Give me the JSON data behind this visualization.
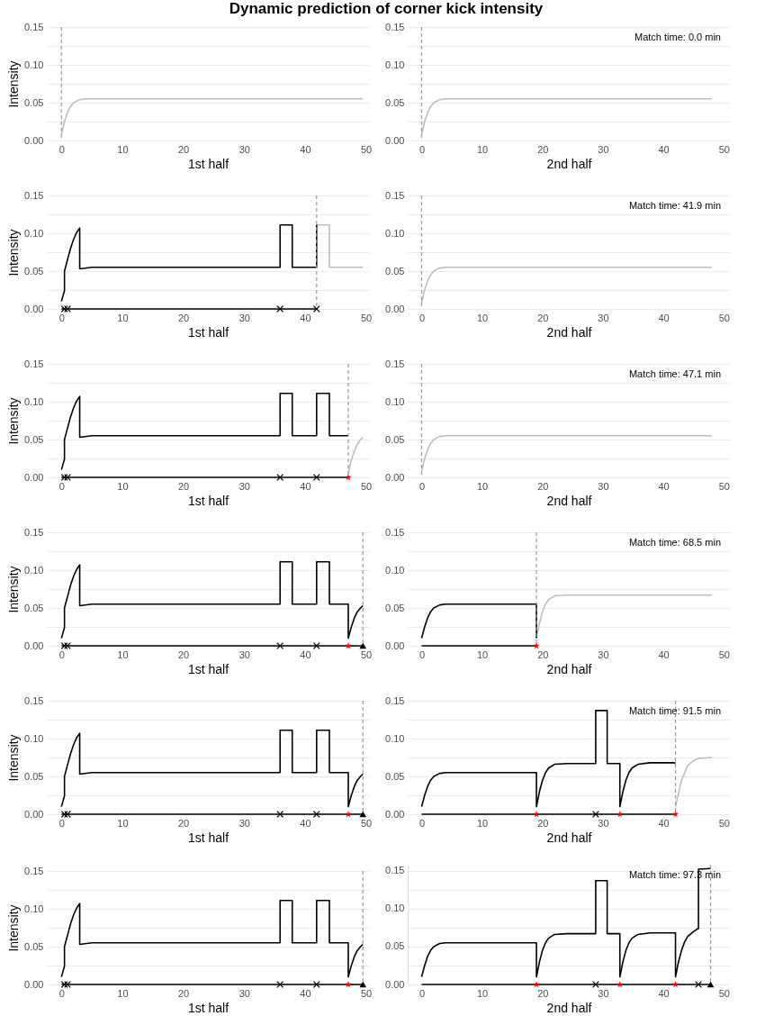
{
  "chart_data": [
    {
      "type": "line",
      "title": "Dynamic prediction of corner kick intensity",
      "xlabel": "1st half",
      "ylabel": "Intensity",
      "xlim": [
        -2.4,
        50.5
      ],
      "ylim": [
        0,
        0.15
      ],
      "xticks": [
        0,
        10,
        20,
        30,
        40,
        50
      ],
      "yticks": [
        {
          "value": 0,
          "label": "0.00"
        },
        {
          "value": 0.025,
          "label": null
        },
        {
          "value": 0.05,
          "label": "0.05"
        },
        {
          "value": 0.075,
          "label": null
        },
        {
          "value": 0.1,
          "label": "0.10"
        },
        {
          "value": 0.125,
          "label": null
        },
        {
          "value": 0.15,
          "label": "0.15"
        }
      ],
      "grid": "y",
      "ref_lines": [
        {
          "axis": "x",
          "value": 0,
          "color": "#999999",
          "line_style": "dashed"
        }
      ],
      "series": [
        {
          "type": "line",
          "color": "#bebebe",
          "x": [
            0,
            0.5,
            1,
            1.5,
            2,
            3,
            4,
            49.5
          ],
          "values": [
            0.008,
            0.025,
            0.037,
            0.045,
            0.05,
            0.054,
            0.055,
            0.055
          ]
        }
      ]
    },
    {
      "type": "line",
      "xlabel": "2nd half",
      "xlim": [
        -2.3,
        51
      ],
      "ylim": [
        0,
        0.15
      ],
      "xticks": [
        0,
        10,
        20,
        30,
        40,
        50
      ],
      "yticks": [
        {
          "value": 0,
          "label": "0.00"
        },
        {
          "value": 0.025,
          "label": null
        },
        {
          "value": 0.05,
          "label": "0.05"
        },
        {
          "value": 0.075,
          "label": null
        },
        {
          "value": 0.1,
          "label": "0.10"
        },
        {
          "value": 0.125,
          "label": null
        },
        {
          "value": 0.15,
          "label": "0.15"
        }
      ],
      "grid": "y",
      "annotations": [
        "Match time: 0.0 min"
      ],
      "ref_lines": [
        {
          "axis": "x",
          "value": 0,
          "color": "#999999",
          "line_style": "dashed"
        }
      ],
      "series": [
        {
          "type": "line",
          "color": "#bebebe",
          "x": [
            0,
            0.5,
            1,
            1.5,
            2,
            3,
            4,
            48
          ],
          "values": [
            0.008,
            0.025,
            0.037,
            0.045,
            0.05,
            0.054,
            0.055,
            0.055
          ]
        }
      ]
    },
    {
      "type": "line",
      "xlabel": "1st half",
      "ylabel": "Intensity",
      "xlim": [
        -2.4,
        50.5
      ],
      "ylim": [
        0,
        0.15
      ],
      "xticks": [
        0,
        10,
        20,
        30,
        40,
        50
      ],
      "yticks": [
        {
          "value": 0,
          "label": "0.00"
        },
        {
          "value": 0.025,
          "label": null
        },
        {
          "value": 0.05,
          "label": "0.05"
        },
        {
          "value": 0.075,
          "label": null
        },
        {
          "value": 0.1,
          "label": "0.10"
        },
        {
          "value": 0.125,
          "label": null
        },
        {
          "value": 0.15,
          "label": "0.15"
        }
      ],
      "grid": "y",
      "ref_lines": [
        {
          "axis": "x",
          "value": 41.9,
          "color": "#999999",
          "line_style": "dashed"
        }
      ],
      "series": [
        {
          "type": "line",
          "color": "#bebebe",
          "x": [
            41.9,
            44,
            44,
            49.5
          ],
          "values": [
            0.111,
            0.111,
            0.055,
            0.055
          ]
        },
        {
          "type": "line",
          "color": "#000000",
          "x": [
            0,
            0.5,
            0.5,
            1,
            1.5,
            2,
            2.5,
            3,
            3,
            5,
            35.9,
            35.9,
            37.9,
            37.9,
            41.9,
            41.9
          ],
          "values": [
            0.01,
            0.024,
            0.05,
            0.065,
            0.08,
            0.092,
            0.101,
            0.107,
            0.053,
            0.055,
            0.055,
            0.111,
            0.111,
            0.055,
            0.055,
            0.111
          ]
        },
        {
          "type": "line",
          "color": "#000000",
          "x": [
            0,
            41.9
          ],
          "values": [
            0,
            0
          ]
        },
        {
          "type": "scatter",
          "marker": "cross",
          "color": "#000000",
          "x": [
            0.5,
            1,
            35.9,
            41.9
          ],
          "values": [
            0,
            0,
            0,
            0
          ]
        }
      ]
    },
    {
      "type": "line",
      "xlabel": "2nd half",
      "xlim": [
        -2.3,
        51
      ],
      "ylim": [
        0,
        0.15
      ],
      "xticks": [
        0,
        10,
        20,
        30,
        40,
        50
      ],
      "yticks": [
        {
          "value": 0,
          "label": "0.00"
        },
        {
          "value": 0.025,
          "label": null
        },
        {
          "value": 0.05,
          "label": "0.05"
        },
        {
          "value": 0.075,
          "label": null
        },
        {
          "value": 0.1,
          "label": "0.10"
        },
        {
          "value": 0.125,
          "label": null
        },
        {
          "value": 0.15,
          "label": "0.15"
        }
      ],
      "grid": "y",
      "annotations": [
        "Match time: 41.9 min"
      ],
      "ref_lines": [
        {
          "axis": "x",
          "value": 0,
          "color": "#999999",
          "line_style": "dashed"
        }
      ],
      "series": [
        {
          "type": "line",
          "color": "#bebebe",
          "x": [
            0,
            0.5,
            1,
            1.5,
            2,
            3,
            4,
            48
          ],
          "values": [
            0.008,
            0.025,
            0.037,
            0.045,
            0.05,
            0.054,
            0.055,
            0.055
          ]
        }
      ]
    },
    {
      "type": "line",
      "xlabel": "1st half",
      "ylabel": "Intensity",
      "xlim": [
        -2.4,
        50.5
      ],
      "ylim": [
        0,
        0.15
      ],
      "xticks": [
        0,
        10,
        20,
        30,
        40,
        50
      ],
      "yticks": [
        {
          "value": 0,
          "label": "0.00"
        },
        {
          "value": 0.025,
          "label": null
        },
        {
          "value": 0.05,
          "label": "0.05"
        },
        {
          "value": 0.075,
          "label": null
        },
        {
          "value": 0.1,
          "label": "0.10"
        },
        {
          "value": 0.125,
          "label": null
        },
        {
          "value": 0.15,
          "label": "0.15"
        }
      ],
      "grid": "y",
      "ref_lines": [
        {
          "axis": "x",
          "value": 47.1,
          "color": "#999999",
          "line_style": "dashed"
        }
      ],
      "series": [
        {
          "type": "line",
          "color": "#bebebe",
          "x": [
            47.1,
            47.6,
            48.1,
            48.6,
            49.1,
            49.5
          ],
          "values": [
            0.006,
            0.023,
            0.035,
            0.044,
            0.05,
            0.053
          ]
        },
        {
          "type": "line",
          "color": "#000000",
          "x": [
            0,
            0.5,
            0.5,
            1,
            1.5,
            2,
            2.5,
            3,
            3,
            5,
            35.9,
            35.9,
            37.9,
            37.9,
            41.9,
            41.9,
            44,
            44,
            47.1
          ],
          "values": [
            0.01,
            0.024,
            0.05,
            0.065,
            0.08,
            0.092,
            0.101,
            0.107,
            0.053,
            0.055,
            0.055,
            0.111,
            0.111,
            0.055,
            0.055,
            0.111,
            0.111,
            0.055,
            0.055
          ]
        },
        {
          "type": "line",
          "color": "#000000",
          "x": [
            0,
            47.1
          ],
          "values": [
            0,
            0
          ]
        },
        {
          "type": "scatter",
          "marker": "cross",
          "color": "#000000",
          "x": [
            0.5,
            1,
            35.9,
            41.9
          ],
          "values": [
            0,
            0,
            0,
            0
          ]
        },
        {
          "type": "scatter",
          "marker": "star",
          "color": "#ff0000",
          "x": [
            47.1
          ],
          "values": [
            0
          ]
        }
      ]
    },
    {
      "type": "line",
      "xlabel": "2nd half",
      "xlim": [
        -2.3,
        51
      ],
      "ylim": [
        0,
        0.15
      ],
      "xticks": [
        0,
        10,
        20,
        30,
        40,
        50
      ],
      "yticks": [
        {
          "value": 0,
          "label": "0.00"
        },
        {
          "value": 0.025,
          "label": null
        },
        {
          "value": 0.05,
          "label": "0.05"
        },
        {
          "value": 0.075,
          "label": null
        },
        {
          "value": 0.1,
          "label": "0.10"
        },
        {
          "value": 0.125,
          "label": null
        },
        {
          "value": 0.15,
          "label": "0.15"
        }
      ],
      "grid": "y",
      "annotations": [
        "Match time: 47.1 min"
      ],
      "ref_lines": [
        {
          "axis": "x",
          "value": 0,
          "color": "#999999",
          "line_style": "dashed"
        }
      ],
      "series": [
        {
          "type": "line",
          "color": "#bebebe",
          "x": [
            0,
            0.5,
            1,
            1.5,
            2,
            3,
            4,
            48
          ],
          "values": [
            0.008,
            0.025,
            0.037,
            0.045,
            0.05,
            0.054,
            0.055,
            0.055
          ]
        }
      ]
    },
    {
      "type": "line",
      "xlabel": "1st half",
      "ylabel": "Intensity",
      "xlim": [
        -2.4,
        50.5
      ],
      "ylim": [
        0,
        0.15
      ],
      "xticks": [
        0,
        10,
        20,
        30,
        40,
        50
      ],
      "yticks": [
        {
          "value": 0,
          "label": "0.00"
        },
        {
          "value": 0.025,
          "label": null
        },
        {
          "value": 0.05,
          "label": "0.05"
        },
        {
          "value": 0.075,
          "label": null
        },
        {
          "value": 0.1,
          "label": "0.10"
        },
        {
          "value": 0.125,
          "label": null
        },
        {
          "value": 0.15,
          "label": "0.15"
        }
      ],
      "grid": "y",
      "ref_lines": [
        {
          "axis": "x",
          "value": 49.5,
          "color": "#999999",
          "line_style": "dashed"
        }
      ],
      "series": [
        {
          "type": "line",
          "color": "#000000",
          "x": [
            0,
            0.5,
            0.5,
            1,
            1.5,
            2,
            2.5,
            3,
            3,
            5,
            35.9,
            35.9,
            37.9,
            37.9,
            41.9,
            41.9,
            44,
            44,
            47.1,
            47.1,
            47.6,
            48.1,
            48.6,
            49.1,
            49.5
          ],
          "values": [
            0.01,
            0.024,
            0.05,
            0.065,
            0.08,
            0.092,
            0.101,
            0.107,
            0.053,
            0.055,
            0.055,
            0.111,
            0.111,
            0.055,
            0.055,
            0.111,
            0.111,
            0.055,
            0.055,
            0.01,
            0.025,
            0.037,
            0.045,
            0.05,
            0.053
          ]
        },
        {
          "type": "line",
          "color": "#000000",
          "x": [
            0,
            49.5
          ],
          "values": [
            0,
            0
          ]
        },
        {
          "type": "scatter",
          "marker": "cross",
          "color": "#000000",
          "x": [
            0.5,
            1,
            35.9,
            41.9
          ],
          "values": [
            0,
            0,
            0,
            0
          ]
        },
        {
          "type": "scatter",
          "marker": "star",
          "color": "#ff0000",
          "x": [
            47.1
          ],
          "values": [
            0
          ]
        },
        {
          "type": "scatter",
          "marker": "triangle",
          "color": "#000000",
          "x": [
            49.5
          ],
          "values": [
            0
          ]
        }
      ]
    },
    {
      "type": "line",
      "xlabel": "2nd half",
      "xlim": [
        -2.3,
        51
      ],
      "ylim": [
        0,
        0.15
      ],
      "xticks": [
        0,
        10,
        20,
        30,
        40,
        50
      ],
      "yticks": [
        {
          "value": 0,
          "label": "0.00"
        },
        {
          "value": 0.025,
          "label": null
        },
        {
          "value": 0.05,
          "label": "0.05"
        },
        {
          "value": 0.075,
          "label": null
        },
        {
          "value": 0.1,
          "label": "0.10"
        },
        {
          "value": 0.125,
          "label": null
        },
        {
          "value": 0.15,
          "label": "0.15"
        }
      ],
      "grid": "y",
      "annotations": [
        "Match time: 68.5 min"
      ],
      "ref_lines": [
        {
          "axis": "x",
          "value": 19,
          "color": "#999999",
          "line_style": "dashed"
        }
      ],
      "series": [
        {
          "type": "line",
          "color": "#bebebe",
          "x": [
            19,
            19.5,
            20,
            20.5,
            21,
            22,
            24,
            48
          ],
          "values": [
            0.01,
            0.03,
            0.045,
            0.055,
            0.061,
            0.066,
            0.067,
            0.067
          ]
        },
        {
          "type": "line",
          "color": "#000000",
          "x": [
            0,
            0.5,
            1,
            1.5,
            2,
            3,
            4,
            19,
            19
          ],
          "values": [
            0.01,
            0.025,
            0.037,
            0.045,
            0.05,
            0.054,
            0.055,
            0.055,
            0.01
          ]
        },
        {
          "type": "line",
          "color": "#000000",
          "x": [
            0,
            19
          ],
          "values": [
            0,
            0
          ]
        },
        {
          "type": "scatter",
          "marker": "star",
          "color": "#ff0000",
          "x": [
            19
          ],
          "values": [
            0
          ]
        }
      ]
    },
    {
      "type": "line",
      "xlabel": "1st half",
      "ylabel": "Intensity",
      "xlim": [
        -2.4,
        50.5
      ],
      "ylim": [
        0,
        0.15
      ],
      "xticks": [
        0,
        10,
        20,
        30,
        40,
        50
      ],
      "yticks": [
        {
          "value": 0,
          "label": "0.00"
        },
        {
          "value": 0.025,
          "label": null
        },
        {
          "value": 0.05,
          "label": "0.05"
        },
        {
          "value": 0.075,
          "label": null
        },
        {
          "value": 0.1,
          "label": "0.10"
        },
        {
          "value": 0.125,
          "label": null
        },
        {
          "value": 0.15,
          "label": "0.15"
        }
      ],
      "grid": "y",
      "ref_lines": [
        {
          "axis": "x",
          "value": 49.5,
          "color": "#999999",
          "line_style": "dashed"
        }
      ],
      "series": [
        {
          "type": "line",
          "color": "#000000",
          "x": [
            0,
            0.5,
            0.5,
            1,
            1.5,
            2,
            2.5,
            3,
            3,
            5,
            35.9,
            35.9,
            37.9,
            37.9,
            41.9,
            41.9,
            44,
            44,
            47.1,
            47.1,
            47.6,
            48.1,
            48.6,
            49.1,
            49.5
          ],
          "values": [
            0.01,
            0.024,
            0.05,
            0.065,
            0.08,
            0.092,
            0.101,
            0.107,
            0.053,
            0.055,
            0.055,
            0.111,
            0.111,
            0.055,
            0.055,
            0.111,
            0.111,
            0.055,
            0.055,
            0.01,
            0.025,
            0.037,
            0.045,
            0.05,
            0.053
          ]
        },
        {
          "type": "line",
          "color": "#000000",
          "x": [
            0,
            49.5
          ],
          "values": [
            0,
            0
          ]
        },
        {
          "type": "scatter",
          "marker": "cross",
          "color": "#000000",
          "x": [
            0.5,
            1,
            35.9,
            41.9
          ],
          "values": [
            0,
            0,
            0,
            0
          ]
        },
        {
          "type": "scatter",
          "marker": "star",
          "color": "#ff0000",
          "x": [
            47.1
          ],
          "values": [
            0
          ]
        },
        {
          "type": "scatter",
          "marker": "triangle",
          "color": "#000000",
          "x": [
            49.5
          ],
          "values": [
            0
          ]
        }
      ]
    },
    {
      "type": "line",
      "xlabel": "2nd half",
      "xlim": [
        -2.3,
        51
      ],
      "ylim": [
        0,
        0.15
      ],
      "xticks": [
        0,
        10,
        20,
        30,
        40,
        50
      ],
      "yticks": [
        {
          "value": 0,
          "label": "0.00"
        },
        {
          "value": 0.025,
          "label": null
        },
        {
          "value": 0.05,
          "label": "0.05"
        },
        {
          "value": 0.075,
          "label": null
        },
        {
          "value": 0.1,
          "label": "0.10"
        },
        {
          "value": 0.125,
          "label": null
        },
        {
          "value": 0.15,
          "label": "0.15"
        }
      ],
      "grid": "y",
      "annotations": [
        "Match time: 91.5 min"
      ],
      "ref_lines": [
        {
          "axis": "x",
          "value": 42,
          "color": "#999999",
          "line_style": "dashed"
        }
      ],
      "series": [
        {
          "type": "line",
          "color": "#bebebe",
          "x": [
            42,
            43,
            44,
            45,
            46,
            48
          ],
          "values": [
            0.01,
            0.045,
            0.064,
            0.071,
            0.074,
            0.075
          ]
        },
        {
          "type": "line",
          "color": "#000000",
          "x": [
            0,
            0.5,
            1,
            1.5,
            2,
            3,
            4,
            19,
            19,
            19.5,
            20,
            20.5,
            21,
            22,
            24,
            28.8,
            28.8,
            30.7,
            30.7,
            32.8,
            32.8,
            33.3,
            33.8,
            34.3,
            34.8,
            35.8,
            37.8,
            42
          ],
          "values": [
            0.01,
            0.025,
            0.037,
            0.045,
            0.05,
            0.054,
            0.055,
            0.055,
            0.01,
            0.03,
            0.045,
            0.055,
            0.061,
            0.066,
            0.067,
            0.067,
            0.137,
            0.137,
            0.067,
            0.067,
            0.01,
            0.03,
            0.045,
            0.055,
            0.061,
            0.066,
            0.068,
            0.068
          ]
        },
        {
          "type": "line",
          "color": "#000000",
          "x": [
            0,
            42
          ],
          "values": [
            0,
            0
          ]
        },
        {
          "type": "scatter",
          "marker": "cross",
          "color": "#000000",
          "x": [
            28.8
          ],
          "values": [
            0
          ]
        },
        {
          "type": "scatter",
          "marker": "star",
          "color": "#ff0000",
          "x": [
            19,
            32.8,
            42
          ],
          "values": [
            0,
            0,
            0
          ]
        }
      ]
    },
    {
      "type": "line",
      "xlabel": "1st half",
      "ylabel": "Intensity",
      "xlim": [
        -2.4,
        50.5
      ],
      "ylim": [
        0,
        0.15
      ],
      "xticks": [
        0,
        10,
        20,
        30,
        40,
        50
      ],
      "yticks": [
        {
          "value": 0,
          "label": "0.00"
        },
        {
          "value": 0.025,
          "label": null
        },
        {
          "value": 0.05,
          "label": "0.05"
        },
        {
          "value": 0.075,
          "label": null
        },
        {
          "value": 0.1,
          "label": "0.10"
        },
        {
          "value": 0.125,
          "label": null
        },
        {
          "value": 0.15,
          "label": "0.15"
        }
      ],
      "grid": "y",
      "ref_lines": [
        {
          "axis": "x",
          "value": 49.5,
          "color": "#999999",
          "line_style": "dashed"
        }
      ],
      "series": [
        {
          "type": "line",
          "color": "#000000",
          "x": [
            0,
            0.5,
            0.5,
            1,
            1.5,
            2,
            2.5,
            3,
            3,
            5,
            35.9,
            35.9,
            37.9,
            37.9,
            41.9,
            41.9,
            44,
            44,
            47.1,
            47.1,
            47.6,
            48.1,
            48.6,
            49.1,
            49.5
          ],
          "values": [
            0.01,
            0.024,
            0.05,
            0.065,
            0.08,
            0.092,
            0.101,
            0.107,
            0.053,
            0.055,
            0.055,
            0.111,
            0.111,
            0.055,
            0.055,
            0.111,
            0.111,
            0.055,
            0.055,
            0.01,
            0.025,
            0.037,
            0.045,
            0.05,
            0.053
          ]
        },
        {
          "type": "line",
          "color": "#000000",
          "x": [
            0,
            49.5
          ],
          "values": [
            0,
            0
          ]
        },
        {
          "type": "scatter",
          "marker": "cross",
          "color": "#000000",
          "x": [
            0.5,
            1,
            35.9,
            41.9
          ],
          "values": [
            0,
            0,
            0,
            0
          ]
        },
        {
          "type": "scatter",
          "marker": "star",
          "color": "#ff0000",
          "x": [
            47.1
          ],
          "values": [
            0
          ]
        },
        {
          "type": "scatter",
          "marker": "triangle",
          "color": "#000000",
          "x": [
            49.5
          ],
          "values": [
            0
          ]
        }
      ]
    },
    {
      "type": "line",
      "xlabel": "2nd half",
      "xlim": [
        -2.3,
        51
      ],
      "ylim": [
        0,
        0.158
      ],
      "xticks": [
        0,
        10,
        20,
        30,
        40,
        50
      ],
      "yticks": [
        {
          "value": 0,
          "label": "0.00"
        },
        {
          "value": 0.025,
          "label": null
        },
        {
          "value": 0.05,
          "label": "0.05"
        },
        {
          "value": 0.075,
          "label": null
        },
        {
          "value": 0.1,
          "label": "0.10"
        },
        {
          "value": 0.125,
          "label": null
        },
        {
          "value": 0.15,
          "label": "0.15"
        }
      ],
      "grid": "y",
      "annotations": [
        "Match time: 97.3 min"
      ],
      "ref_lines": [
        {
          "axis": "x",
          "value": 47.8,
          "color": "#999999",
          "line_style": "dashed"
        }
      ],
      "series": [
        {
          "type": "line",
          "color": "#000000",
          "x": [
            0,
            0.5,
            1,
            1.5,
            2,
            3,
            4,
            19,
            19,
            19.5,
            20,
            20.5,
            21,
            22,
            24,
            28.8,
            28.8,
            30.7,
            30.7,
            32.8,
            32.8,
            33.3,
            33.8,
            34.3,
            34.8,
            35.8,
            37.8,
            42,
            42,
            42.5,
            43,
            43.5,
            44,
            45,
            45.8,
            45.8,
            47.8
          ],
          "values": [
            0.01,
            0.025,
            0.037,
            0.045,
            0.05,
            0.054,
            0.055,
            0.055,
            0.01,
            0.03,
            0.045,
            0.055,
            0.061,
            0.066,
            0.067,
            0.067,
            0.137,
            0.137,
            0.067,
            0.067,
            0.01,
            0.03,
            0.045,
            0.055,
            0.061,
            0.066,
            0.068,
            0.068,
            0.01,
            0.03,
            0.045,
            0.056,
            0.063,
            0.07,
            0.074,
            0.152,
            0.153
          ]
        },
        {
          "type": "line",
          "color": "#000000",
          "x": [
            0,
            47.8
          ],
          "values": [
            0,
            0
          ]
        },
        {
          "type": "scatter",
          "marker": "cross",
          "color": "#000000",
          "x": [
            28.8,
            45.8
          ],
          "values": [
            0,
            0
          ]
        },
        {
          "type": "scatter",
          "marker": "star",
          "color": "#ff0000",
          "x": [
            19,
            32.8,
            42
          ],
          "values": [
            0,
            0,
            0
          ]
        },
        {
          "type": "scatter",
          "marker": "triangle",
          "color": "#000000",
          "x": [
            47.8
          ],
          "values": [
            0
          ]
        }
      ]
    }
  ]
}
